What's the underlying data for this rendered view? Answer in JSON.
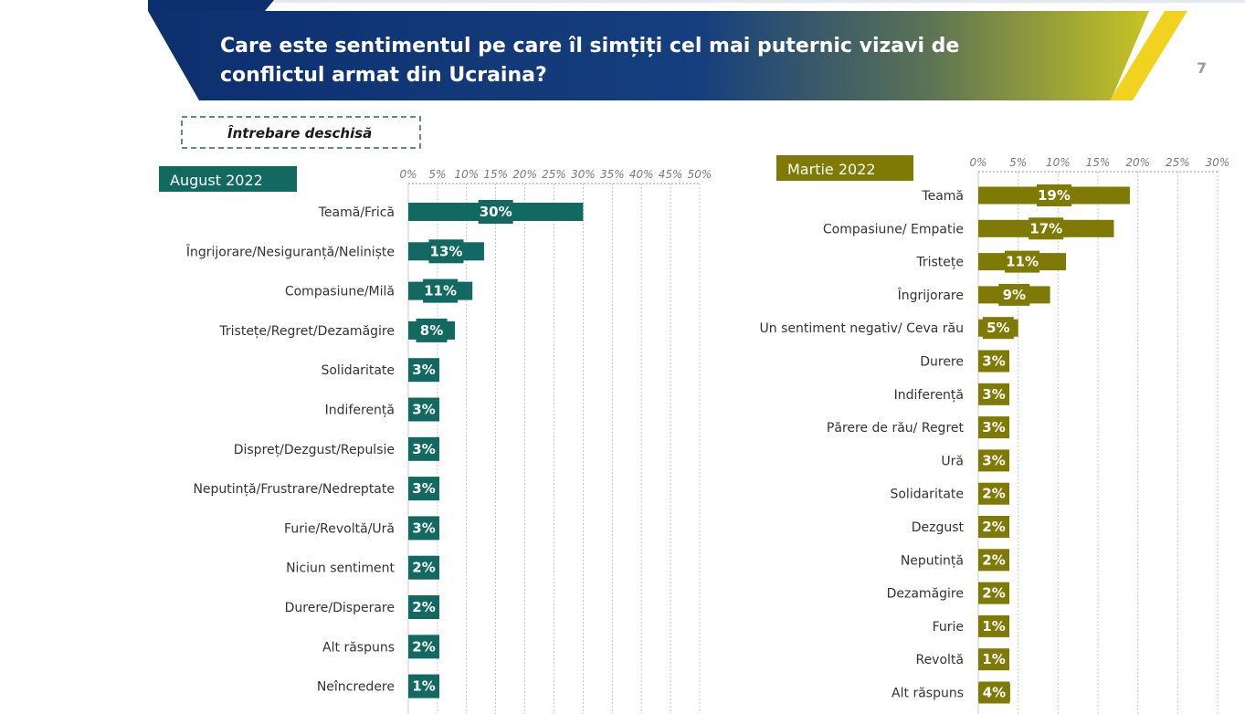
{
  "header": {
    "title_line1": "Care este sentimentul pe care îl simțiți cel mai puternic vizavi de",
    "title_line2": "conflictul armat din Ucraina?",
    "page_number": "7"
  },
  "note": "Întrebare deschisă",
  "colors": {
    "banner_dark": "#0d2f6e",
    "banner_light": "#c7c423",
    "stripe": "#f1d21e",
    "august": "#116962",
    "martie": "#7f7a05",
    "note_border": "#2e6b3f"
  },
  "chart_data": [
    {
      "type": "bar",
      "orientation": "horizontal",
      "title": "August 2022",
      "tick_labels": [
        "0%",
        "5%",
        "10%",
        "15%",
        "20%",
        "25%",
        "30%",
        "35%",
        "40%",
        "45%",
        "50%"
      ],
      "xlim": [
        0,
        50
      ],
      "grid": true,
      "categories": [
        "Teamă/Frică",
        "Îngrijorare/Nesiguranță/Neliniște",
        "Compasiune/Milă",
        "Tristețe/Regret/Dezamăgire",
        "Solidaritate",
        "Indiferență",
        "Dispreț/Dezgust/Repulsie",
        "Neputință/Frustrare/Nedreptate",
        "Furie/Revoltă/Ură",
        "Niciun sentiment",
        "Durere/Disperare",
        "Alt răspuns",
        "Neîncredere"
      ],
      "values": [
        30,
        13,
        11,
        8,
        3,
        3,
        3,
        3,
        3,
        2,
        2,
        2,
        1
      ],
      "value_labels": [
        "30%",
        "13%",
        "11%",
        "8%",
        "3%",
        "3%",
        "3%",
        "3%",
        "3%",
        "2%",
        "2%",
        "2%",
        "1%"
      ]
    },
    {
      "type": "bar",
      "orientation": "horizontal",
      "title": "Martie 2022",
      "tick_labels": [
        "0%",
        "5%",
        "10%",
        "15%",
        "20%",
        "25%",
        "30%"
      ],
      "xlim": [
        0,
        30
      ],
      "grid": true,
      "categories": [
        "Teamă",
        "Compasiune/ Empatie",
        "Tristețe",
        "Îngrijorare",
        "Un sentiment negativ/ Ceva rău",
        "Durere",
        "Indiferență",
        "Părere de rău/ Regret",
        "Ură",
        "Solidaritate",
        "Dezgust",
        "Neputință",
        "Dezamăgire",
        "Furie",
        "Revoltă",
        "Alt răspuns"
      ],
      "values": [
        19,
        17,
        11,
        9,
        5,
        3,
        3,
        3,
        3,
        2,
        2,
        2,
        2,
        1,
        1,
        4
      ],
      "value_labels": [
        "19%",
        "17%",
        "11%",
        "9%",
        "5%",
        "3%",
        "3%",
        "3%",
        "3%",
        "2%",
        "2%",
        "2%",
        "2%",
        "1%",
        "1%",
        "4%"
      ]
    }
  ]
}
